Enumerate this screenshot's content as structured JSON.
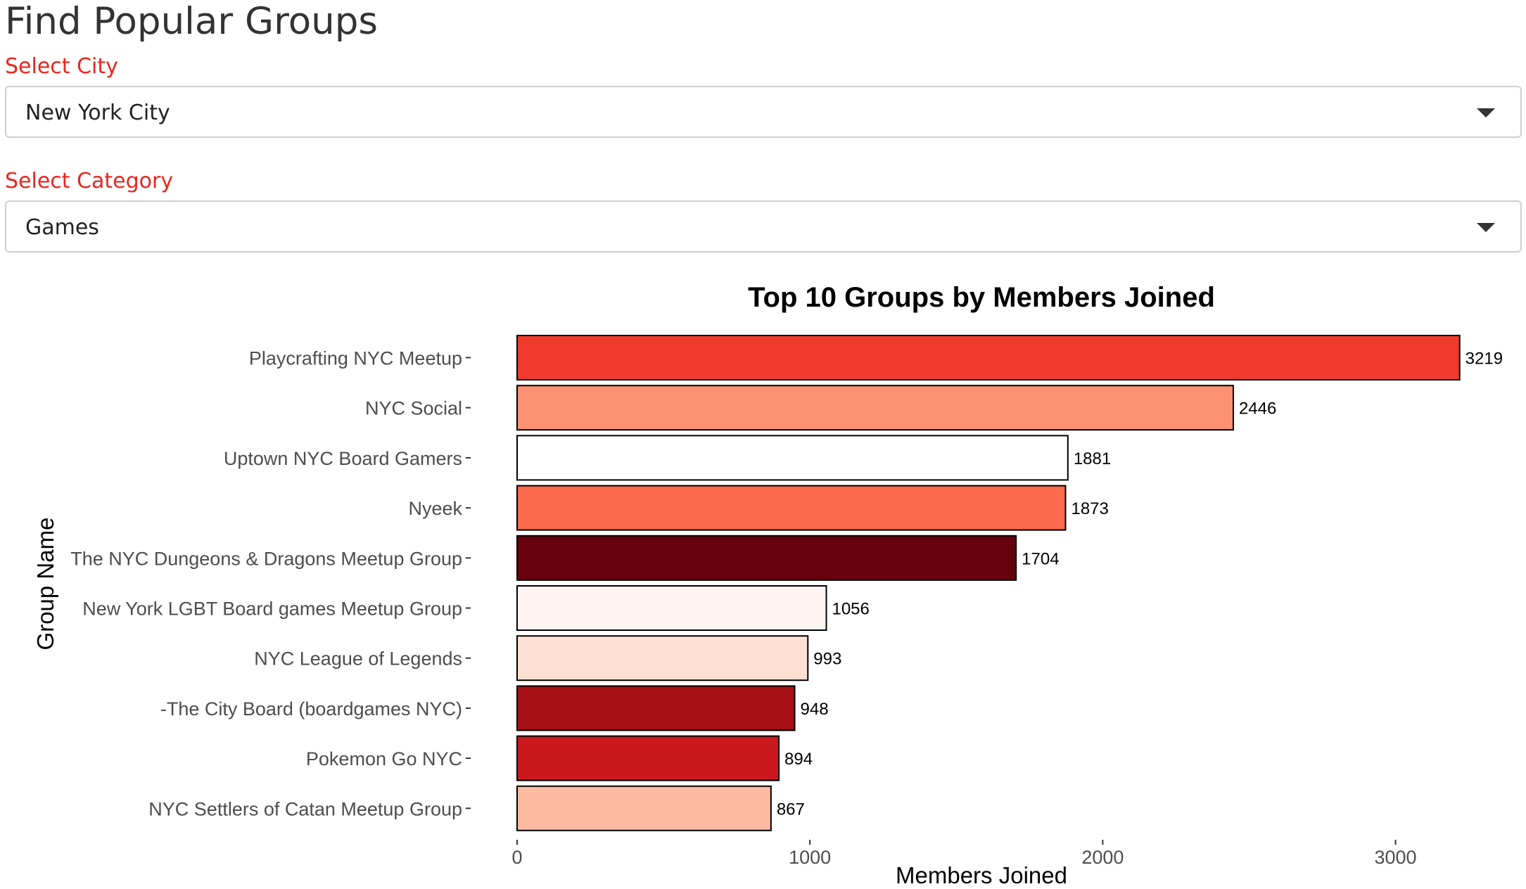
{
  "page": {
    "title": "Find Popular Groups"
  },
  "filters": {
    "city": {
      "label": "Select City",
      "value": "New York City"
    },
    "category": {
      "label": "Select Category",
      "value": "Games"
    }
  },
  "icons": {
    "dropdown": "caret-down-icon"
  },
  "colors": {
    "label": "#e8261e",
    "title": "#333333"
  },
  "chart_data": {
    "type": "bar",
    "orientation": "horizontal",
    "title": "Top 10 Groups by Members Joined",
    "xlabel": "Members Joined",
    "ylabel": "Group Name",
    "xlim": [
      0,
      3400
    ],
    "xticks": [
      0,
      1000,
      2000,
      3000
    ],
    "grid": false,
    "legend": "none",
    "categories": [
      "Playcrafting NYC Meetup",
      "NYC Social",
      "Uptown NYC Board Gamers",
      "Nyeek",
      "The NYC Dungeons & Dragons Meetup Group",
      "New York LGBT Board games Meetup Group",
      "NYC League of Legends",
      "-The City Board (boardgames NYC)",
      "Pokemon Go NYC",
      "NYC Settlers of Catan Meetup Group"
    ],
    "values": [
      3219,
      2446,
      1881,
      1873,
      1704,
      1056,
      993,
      948,
      894,
      867
    ],
    "bar_colors": [
      "#ef3b2c",
      "#fc9272",
      "#ffffff",
      "#fb6a4a",
      "#67000d",
      "#fff5f0",
      "#fee0d2",
      "#a50f15",
      "#cb181d",
      "#fcbba1"
    ],
    "bar_outline": "#000000"
  }
}
